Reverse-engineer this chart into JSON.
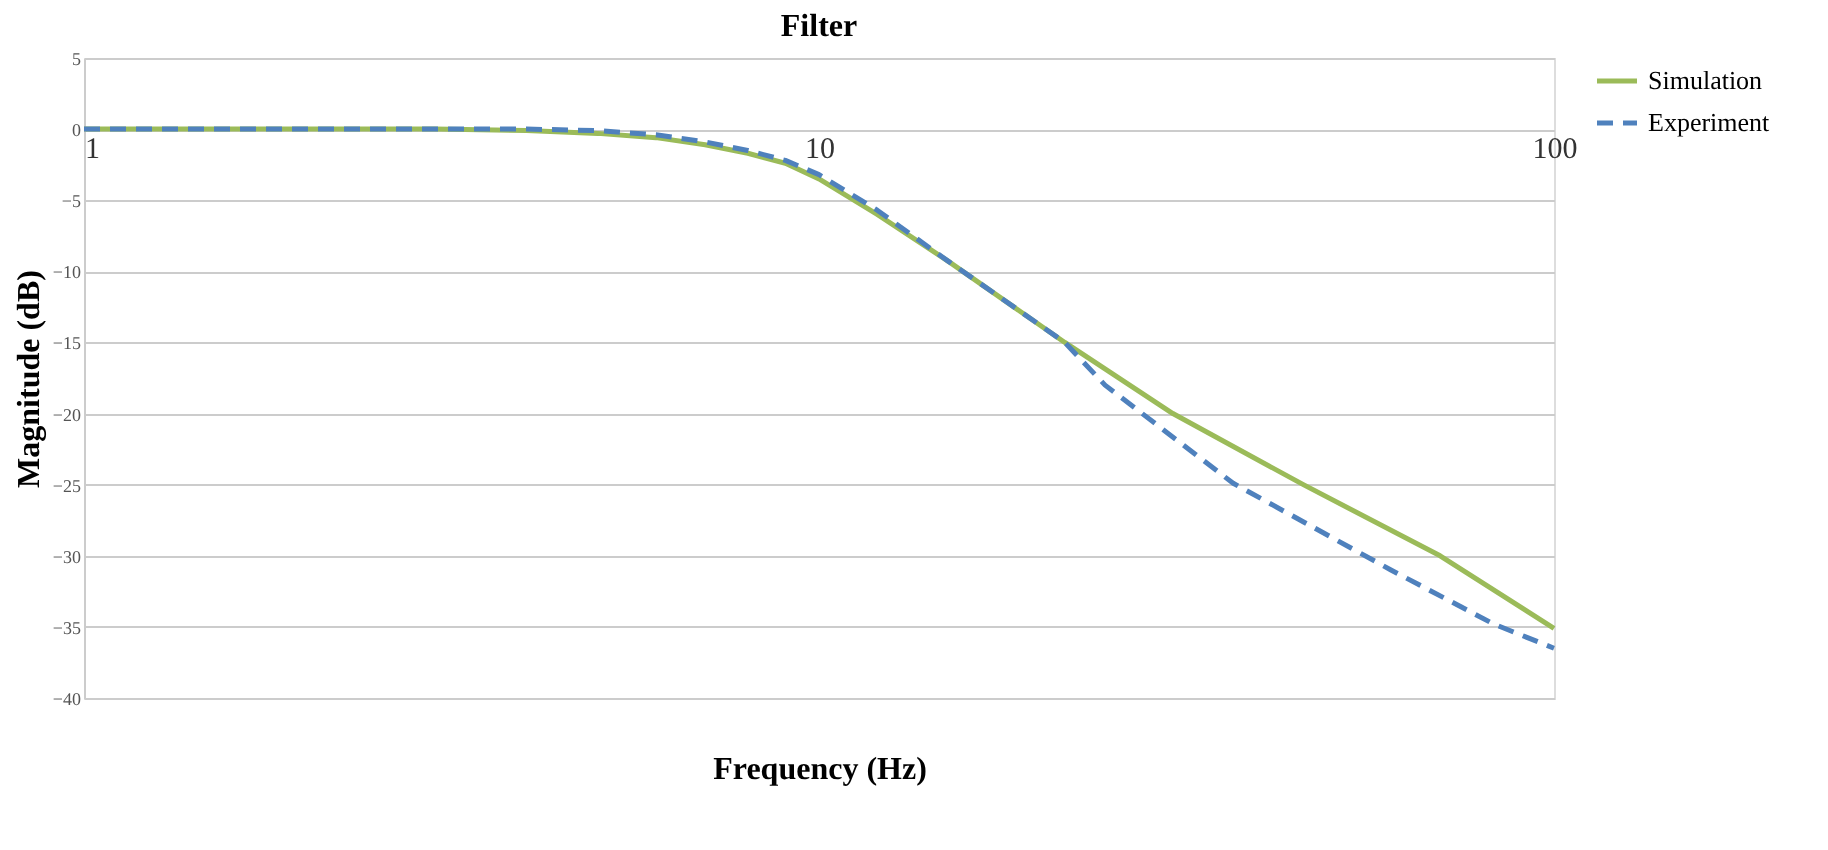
{
  "chart_data": {
    "type": "line",
    "title": "Filter",
    "xlabel": "Frequency (Hz)",
    "ylabel": "Magnitude (dB)",
    "log": "x",
    "xlim": [
      1,
      100
    ],
    "xticks": [
      1,
      10,
      100
    ],
    "ylim": [
      -40,
      5
    ],
    "yticks": [
      -40,
      -35,
      -30,
      -25,
      -20,
      -15,
      -10,
      -5,
      0,
      5
    ],
    "grid": "y",
    "legend": "right",
    "series": [
      {
        "name": "Simulation",
        "color": "#9bbb59",
        "line_style": "solid",
        "x": [
          1,
          2,
          3,
          4,
          5,
          6,
          7,
          8,
          9,
          10,
          12,
          15,
          21.6,
          30.3,
          45.6,
          70,
          100
        ],
        "values": [
          0,
          0,
          0,
          -0.1,
          -0.3,
          -0.6,
          -1.1,
          -1.7,
          -2.4,
          -3.5,
          -6,
          -9.3,
          -15,
          -20,
          -25,
          -30,
          -35.1
        ]
      },
      {
        "name": "Experiment",
        "color": "#4f81bd",
        "line_style": "dashed",
        "x": [
          1,
          2,
          3,
          4,
          5,
          6,
          7,
          8,
          9,
          10,
          12,
          15,
          21.6,
          24.5,
          36.6,
          60,
          82.8,
          100
        ],
        "values": [
          0,
          0,
          0,
          0,
          -0.1,
          -0.4,
          -0.9,
          -1.5,
          -2.2,
          -3.2,
          -5.7,
          -9.3,
          -15,
          -18,
          -24.9,
          -31,
          -34.8,
          -36.5
        ]
      }
    ]
  }
}
